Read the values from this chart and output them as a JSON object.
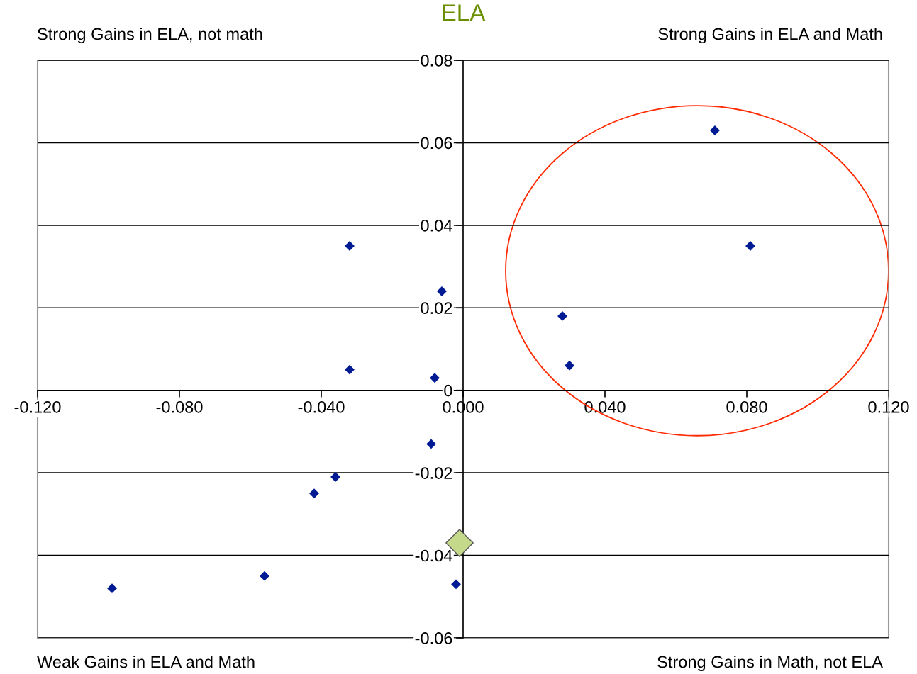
{
  "chart_data": {
    "type": "scatter",
    "title": "ELA",
    "xlim": [
      -0.12,
      0.12
    ],
    "ylim": [
      -0.06,
      0.08
    ],
    "xticks": [
      {
        "value": -0.12,
        "label": "-0.120"
      },
      {
        "value": -0.08,
        "label": "-0.080"
      },
      {
        "value": -0.04,
        "label": "-0.040"
      },
      {
        "value": 0,
        "label": "0.000"
      },
      {
        "value": 0.04,
        "label": "0.040"
      },
      {
        "value": 0.08,
        "label": "0.080"
      },
      {
        "value": 0.12,
        "label": "0.120"
      }
    ],
    "yticks": [
      -0.06,
      -0.04,
      -0.02,
      0,
      0.02,
      0.04,
      0.06,
      0.08
    ],
    "grid": "y",
    "marker": "diamond",
    "legend": false,
    "series": [
      {
        "color": "#001a94",
        "x": [
          0.071,
          0.081,
          0.028,
          0.03,
          -0.032,
          -0.006,
          -0.032,
          -0.008,
          -0.009,
          -0.036,
          -0.042,
          -0.056,
          -0.099,
          -0.002
        ],
        "values": [
          0.063,
          0.035,
          0.018,
          0.006,
          0.035,
          0.024,
          0.005,
          0.003,
          -0.013,
          -0.021,
          -0.025,
          -0.045,
          -0.048,
          -0.047
        ]
      },
      {
        "color": "#c4d98a",
        "x": [
          -0.001
        ],
        "values": [
          -0.037
        ]
      }
    ],
    "annotations": [
      "Strong Gains in ELA, not math",
      "Strong Gains in ELA and Math",
      "Weak Gains in ELA and Math",
      "Strong Gains in Math, not ELA"
    ]
  }
}
